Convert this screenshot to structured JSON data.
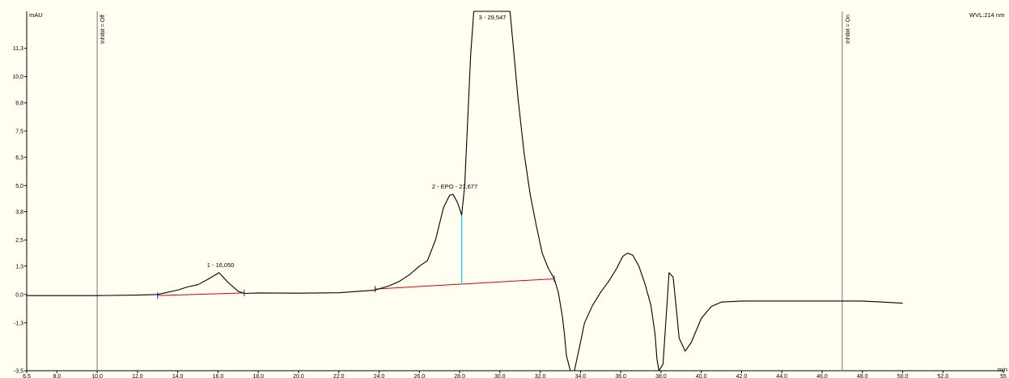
{
  "chart_data": {
    "type": "line",
    "ylabel": "mAU",
    "xlabel": "min",
    "wavelength_label": "WVL:214 nm",
    "xlim": [
      6.5,
      55.0
    ],
    "ylim": [
      -3.5,
      13.0
    ],
    "x_ticks": [
      "6,5",
      "8,0",
      "10,0",
      "12,0",
      "14,0",
      "16,0",
      "18,0",
      "20,0",
      "22,0",
      "24,0",
      "26,0",
      "28,0",
      "30,0",
      "32,0",
      "34,0",
      "36,0",
      "38,0",
      "40,0",
      "42,0",
      "44,0",
      "46,0",
      "48,0",
      "50,0",
      "52,0",
      "55"
    ],
    "x_tick_values": [
      6.5,
      8,
      10,
      12,
      14,
      16,
      18,
      20,
      22,
      24,
      26,
      28,
      30,
      32,
      34,
      36,
      38,
      40,
      42,
      44,
      46,
      48,
      50,
      52,
      55
    ],
    "y_ticks": [
      "-3,5",
      "-1,3",
      "0,0",
      "1,3",
      "2,5",
      "3,8",
      "5,0",
      "6,3",
      "7,5",
      "8,8",
      "10,0",
      "11,3"
    ],
    "y_tick_values": [
      -3.5,
      -1.3,
      0.0,
      1.3,
      2.5,
      3.8,
      5.0,
      6.3,
      7.5,
      8.8,
      10.0,
      11.3
    ],
    "events": [
      {
        "label": "Inhibit = Off",
        "x": 10.0
      },
      {
        "label": "Inhibit = On",
        "x": 47.0
      }
    ],
    "peaks": [
      {
        "label": "1 - 16,050",
        "x": 16.05,
        "y": 1.0
      },
      {
        "label": "2 - EPO - 27,677",
        "x": 27.677,
        "y": 4.6
      },
      {
        "label": "3 - 29,547",
        "x": 29.547,
        "y": 13.0
      }
    ],
    "baselines": [
      {
        "x1": 13.0,
        "y1": -0.05,
        "x2": 17.3,
        "y2": 0.07
      },
      {
        "x1": 23.8,
        "y1": 0.25,
        "x2": 32.7,
        "y2": 0.72
      }
    ],
    "drop_line": {
      "x": 28.1,
      "y_top": 3.65,
      "y_bottom": 0.47
    },
    "series": [
      {
        "x": [
          6.5,
          8.0,
          10.0,
          12.0,
          13.0,
          14.0,
          14.5,
          15.0,
          15.5,
          16.05,
          16.5,
          17.0,
          17.3,
          18.0,
          20.0,
          22.0,
          23.8,
          24.5,
          25.0,
          25.5,
          26.0,
          26.4,
          26.8,
          27.2,
          27.5,
          27.677,
          27.9,
          28.1,
          28.25,
          28.4,
          28.55,
          28.7,
          28.85,
          29.0,
          30.5,
          30.7,
          30.9,
          31.2,
          31.5,
          31.8,
          32.1,
          32.4,
          32.7,
          32.9,
          33.1,
          33.2,
          33.3,
          33.5,
          33.7,
          34.0,
          34.2,
          34.6,
          35.0,
          35.4,
          35.8,
          36.1,
          36.35,
          36.6,
          36.9,
          37.2,
          37.5,
          37.7,
          37.8,
          37.9,
          38.1,
          38.2,
          38.4,
          38.6,
          38.8,
          38.9,
          39.2,
          39.5,
          40.0,
          40.5,
          41.0,
          42.0,
          44.0,
          46.0,
          47.0,
          48.0,
          49.0,
          50.0
        ],
        "y": [
          -0.05,
          -0.05,
          -0.05,
          -0.03,
          0.0,
          0.2,
          0.35,
          0.45,
          0.7,
          1.0,
          0.55,
          0.15,
          0.05,
          0.07,
          0.06,
          0.08,
          0.2,
          0.4,
          0.6,
          0.9,
          1.3,
          1.55,
          2.5,
          4.0,
          4.55,
          4.6,
          4.2,
          3.65,
          5.0,
          8.0,
          11.0,
          13.0,
          13.0,
          13.0,
          13.0,
          11.0,
          9.0,
          6.5,
          4.6,
          3.2,
          1.9,
          1.2,
          0.72,
          0.1,
          -1.0,
          -1.8,
          -2.8,
          -3.5,
          -3.5,
          -2.2,
          -1.3,
          -0.5,
          0.1,
          0.6,
          1.2,
          1.75,
          1.9,
          1.8,
          1.3,
          0.5,
          -0.5,
          -1.8,
          -3.0,
          -3.5,
          -3.2,
          -1.8,
          1.0,
          0.8,
          -1.0,
          -2.0,
          -2.6,
          -2.2,
          -1.1,
          -0.55,
          -0.35,
          -0.3,
          -0.3,
          -0.3,
          -0.3,
          -0.3,
          -0.35,
          -0.4
        ]
      }
    ]
  }
}
